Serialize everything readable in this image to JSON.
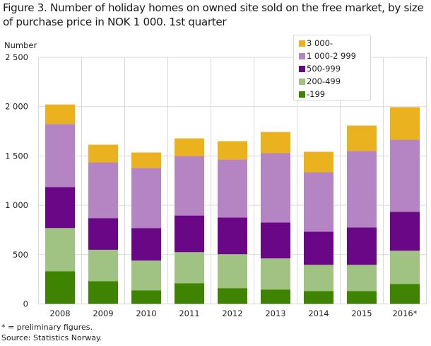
{
  "chart_data": {
    "type": "bar",
    "stacked": true,
    "title": "Figure 3. Number of holiday homes on owned site sold on the free market, by size of purchase price in NOK 1 000. 1st quarter",
    "ylabel": "Number",
    "xlabel": "",
    "ylim": [
      0,
      2500
    ],
    "yticks": [
      0,
      500,
      1000,
      1500,
      2000,
      2500
    ],
    "ytick_labels": [
      "0",
      "500",
      "1 000",
      "1 500",
      "2 000",
      "2 500"
    ],
    "grid": true,
    "legend_position": "top-right",
    "categories": [
      "2008",
      "2009",
      "2010",
      "2011",
      "2012",
      "2013",
      "2014",
      "2015",
      "2016*"
    ],
    "series": [
      {
        "name": "-199",
        "color": "#3f8400",
        "values": [
          332,
          231,
          138,
          210,
          160,
          146,
          131,
          131,
          203
        ]
      },
      {
        "name": "200-499",
        "color": "#a0c383",
        "values": [
          437,
          318,
          301,
          315,
          344,
          315,
          265,
          265,
          336
        ]
      },
      {
        "name": "500-999",
        "color": "#6a0787",
        "values": [
          415,
          321,
          330,
          371,
          372,
          365,
          337,
          380,
          395
        ]
      },
      {
        "name": "1 000-2 999",
        "color": "#b484c3",
        "values": [
          640,
          565,
          609,
          603,
          587,
          702,
          601,
          774,
          730
        ]
      },
      {
        "name": "3 000-",
        "color": "#ebb220",
        "values": [
          198,
          179,
          157,
          179,
          187,
          215,
          208,
          258,
          330
        ]
      }
    ],
    "legend_order": [
      "3 000-",
      "1 000-2 999",
      "500-999",
      "200-499",
      "-199"
    ],
    "footnotes": [
      "* = preliminary figures.",
      "Source: Statistics Norway."
    ]
  }
}
